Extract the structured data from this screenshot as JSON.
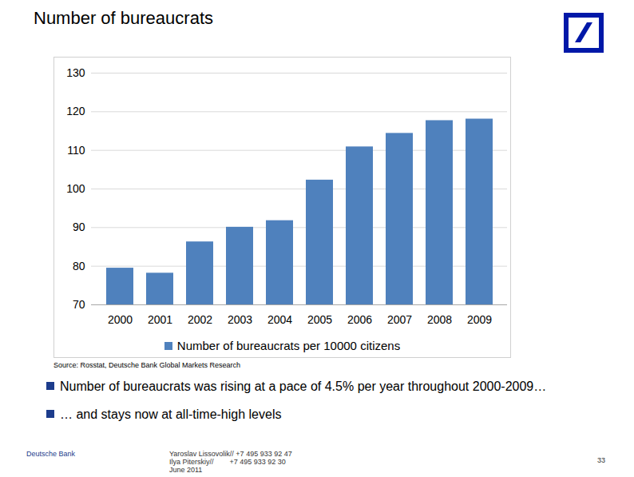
{
  "chart_data": {
    "type": "bar",
    "title": "Number of bureaucrats",
    "categories": [
      "2000",
      "2001",
      "2002",
      "2003",
      "2004",
      "2005",
      "2006",
      "2007",
      "2008",
      "2009"
    ],
    "series": [
      {
        "name": "Number of bureaucrats per 10000 citizens",
        "color": "#4f81bd",
        "values": [
          79.5,
          78.2,
          86.3,
          90.1,
          91.8,
          102.3,
          110.9,
          114.4,
          117.7,
          118.1
        ]
      }
    ],
    "ylim": [
      70,
      130
    ],
    "yticks": [
      70,
      80,
      90,
      100,
      110,
      120,
      130
    ],
    "grid": true,
    "legend": "bottom"
  },
  "source": "Source: Rosstat, Deutsche Bank Global Markets Research",
  "bullets": [
    "Number of bureaucrats was rising at a pace of 4.5% per year throughout 2000-2009…",
    "… and stays now at all-time-high levels"
  ],
  "footer": {
    "company": "Deutsche Bank",
    "contacts": [
      "Yaroslav Lissovolik// +7 495 933 92 47",
      "Ilya Piterskiy//        +7 495 933 92 30",
      "June 2011"
    ],
    "page": "33"
  }
}
